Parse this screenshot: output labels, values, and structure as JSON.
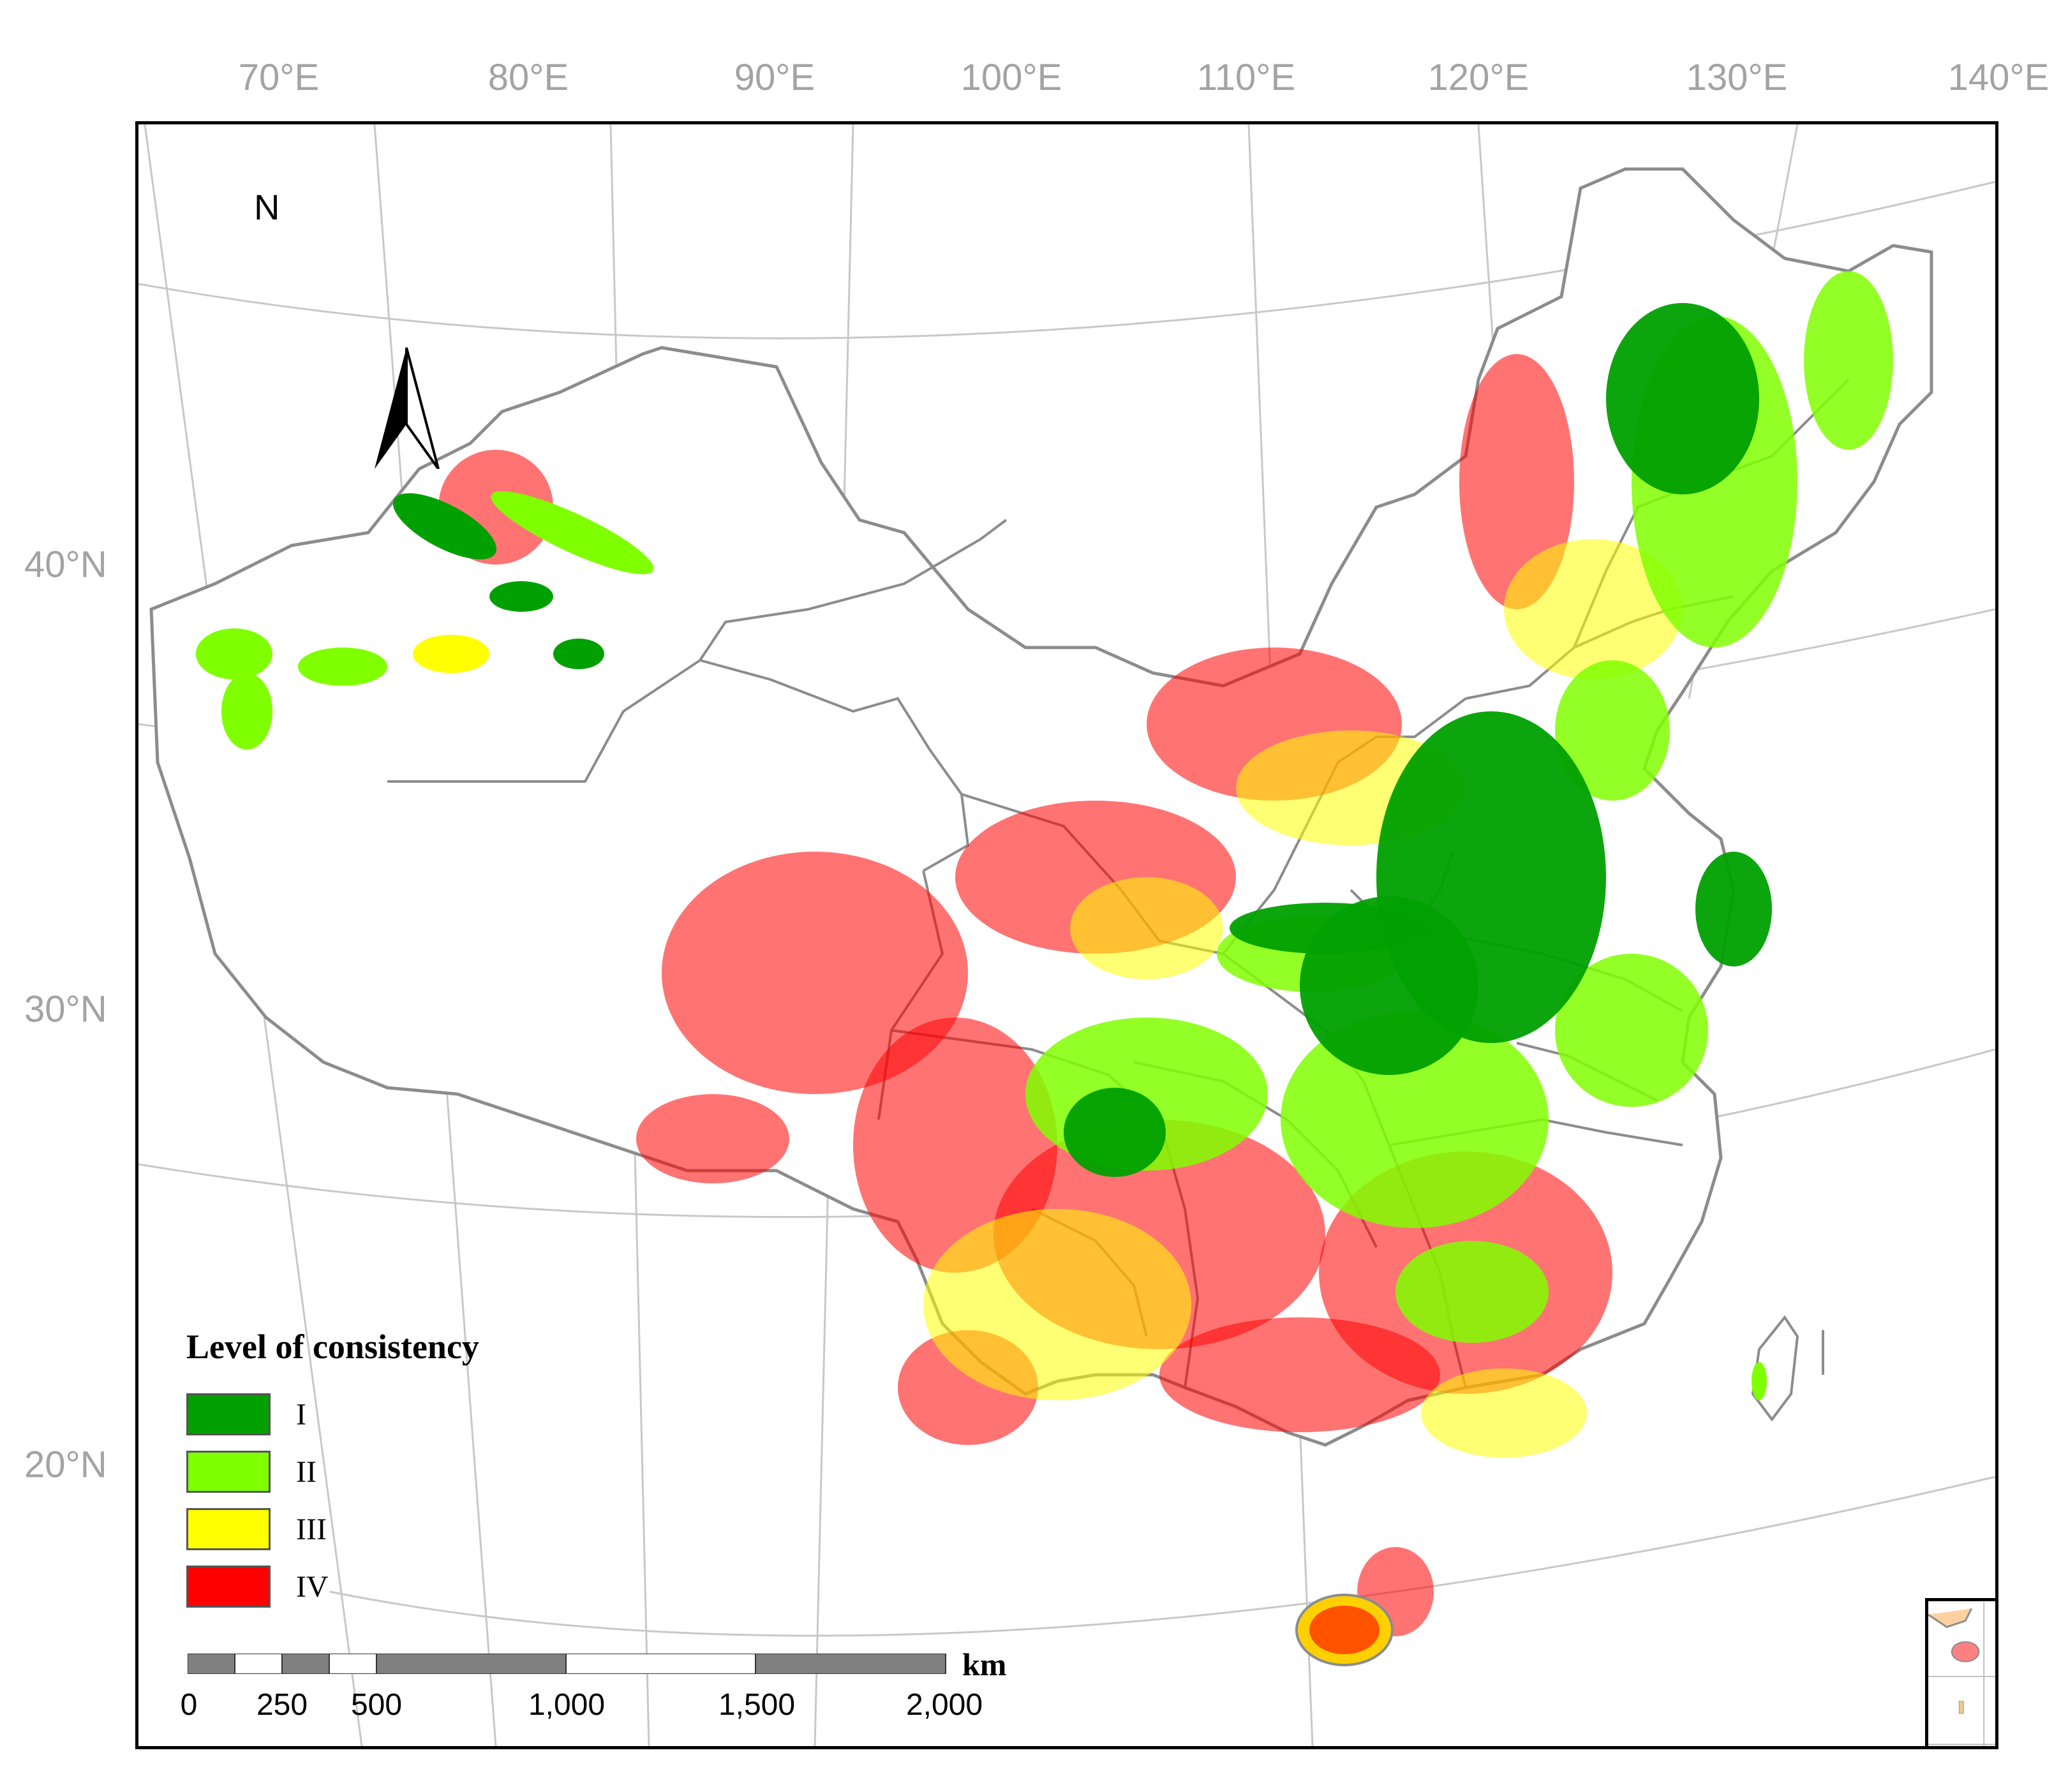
{
  "map": {
    "lon_ticks": [
      "70°E",
      "80°E",
      "90°E",
      "100°E",
      "110°E",
      "120°E",
      "130°E",
      "140°E"
    ],
    "lat_ticks": [
      "40°N",
      "30°N",
      "20°N"
    ],
    "north_label": "N"
  },
  "legend": {
    "title": "Level of consistency",
    "items": [
      {
        "label": "I",
        "color": "#00a000"
      },
      {
        "label": "II",
        "color": "#80ff00"
      },
      {
        "label": "III",
        "color": "#ffff00"
      },
      {
        "label": "IV",
        "color": "#ff0000"
      }
    ]
  },
  "scale_bar": {
    "labels": [
      "0",
      "250",
      "500",
      "1,000",
      "1,500",
      "2,000"
    ],
    "unit": "km"
  },
  "colors": {
    "boundary": "#8c8c8c",
    "graticule": "#c8c8c8",
    "tick_text": "#a3a3a3"
  }
}
